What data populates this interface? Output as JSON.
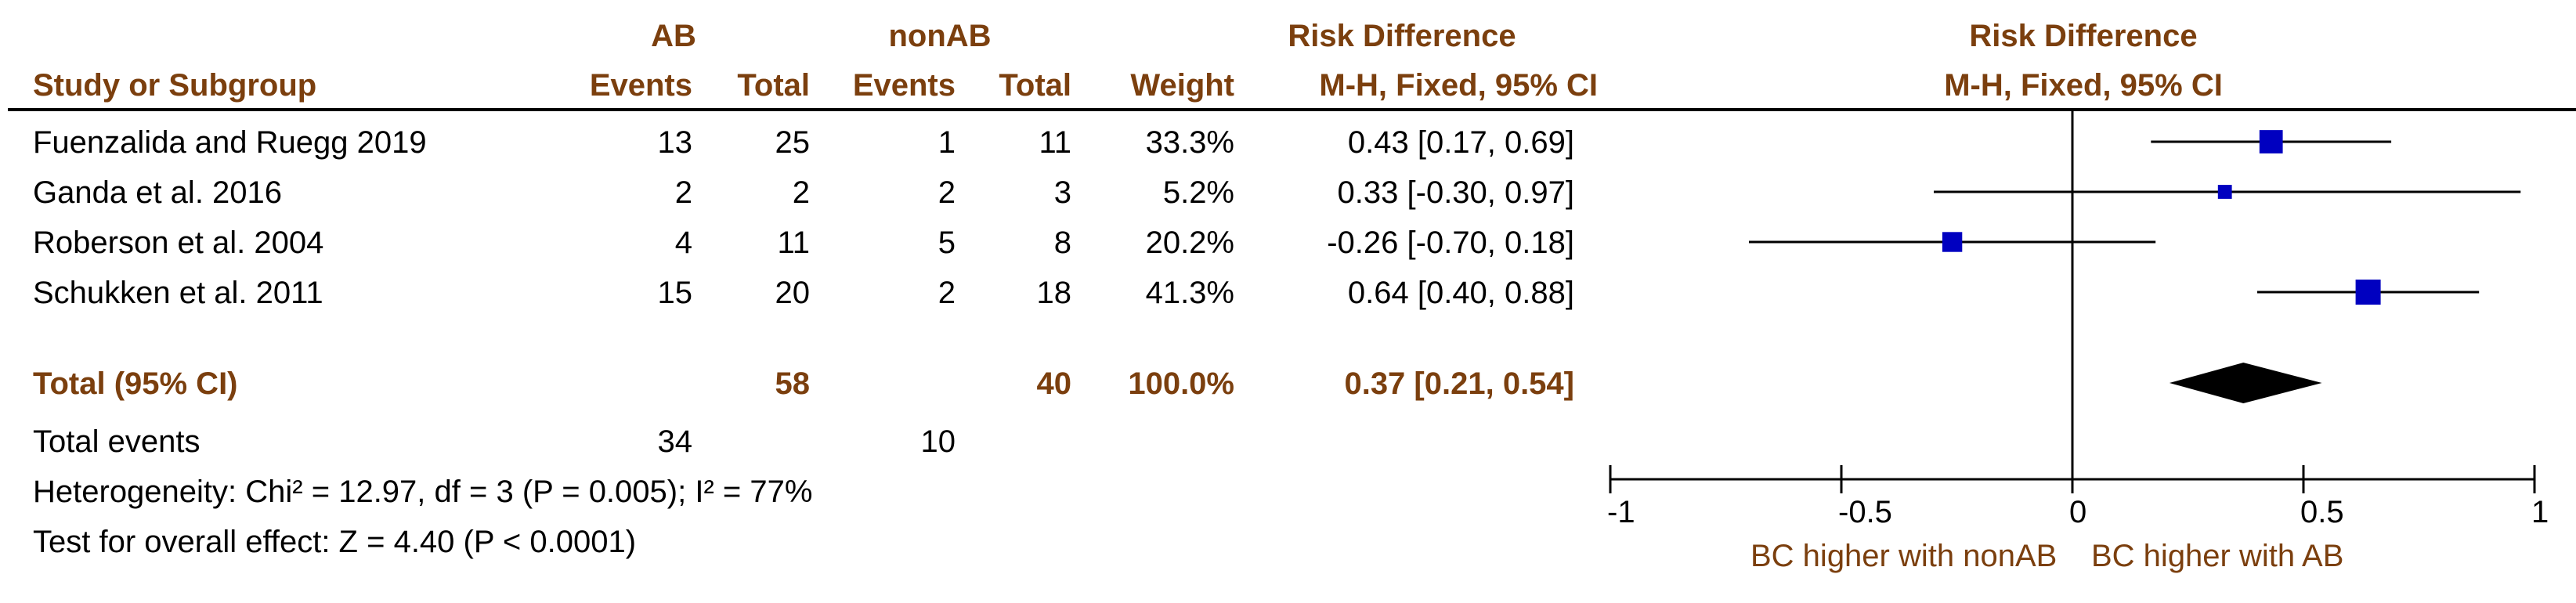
{
  "header": {
    "group1": "AB",
    "group2": "nonAB",
    "effect_title": "Risk Difference",
    "study_col": "Study or Subgroup",
    "events_col": "Events",
    "total_col": "Total",
    "weight_col": "Weight",
    "method": "M-H, Fixed, 95% CI",
    "plot_title": "Risk Difference",
    "plot_method": "M-H, Fixed, 95% CI"
  },
  "studies": [
    {
      "name": "Fuenzalida and Ruegg 2019",
      "ab_events": "13",
      "ab_total": "25",
      "nonab_events": "1",
      "nonab_total": "11",
      "weight": "33.3%",
      "ci_text": "0.43 [0.17, 0.69]"
    },
    {
      "name": "Ganda et al. 2016",
      "ab_events": "2",
      "ab_total": "2",
      "nonab_events": "2",
      "nonab_total": "3",
      "weight": "5.2%",
      "ci_text": "0.33 [-0.30, 0.97]"
    },
    {
      "name": "Roberson et al. 2004",
      "ab_events": "4",
      "ab_total": "11",
      "nonab_events": "5",
      "nonab_total": "8",
      "weight": "20.2%",
      "ci_text": "-0.26 [-0.70, 0.18]"
    },
    {
      "name": "Schukken et al. 2011",
      "ab_events": "15",
      "ab_total": "20",
      "nonab_events": "2",
      "nonab_total": "18",
      "weight": "41.3%",
      "ci_text": "0.64 [0.40, 0.88]"
    }
  ],
  "total": {
    "label": "Total (95% CI)",
    "ab_total": "58",
    "nonab_total": "40",
    "weight": "100.0%",
    "ci_text": "0.37 [0.21, 0.54]"
  },
  "events": {
    "label": "Total events",
    "ab": "34",
    "nonab": "10"
  },
  "heterogeneity": "Heterogeneity: Chi² = 12.97, df = 3 (P = 0.005); I² = 77%",
  "overall_effect": "Test for overall effect: Z = 4.40 (P < 0.0001)",
  "axis": {
    "ticks": [
      -1,
      -0.5,
      0,
      0.5,
      1
    ],
    "tick_labels": [
      "-1",
      "-0.5",
      "0",
      "0.5",
      "1"
    ],
    "left_label": "BC higher with nonAB",
    "right_label": "BC higher with AB"
  },
  "chart_data": {
    "type": "forest",
    "xlim": [
      -1,
      1
    ],
    "reference_line": 0,
    "colors": {
      "study_marker": "#0000c0",
      "pooled": "#000000",
      "header": "#7b3f0e"
    },
    "series": [
      {
        "study": "Fuenzalida and Ruegg 2019",
        "rd": 0.43,
        "lower": 0.17,
        "upper": 0.69,
        "weight": 33.3
      },
      {
        "study": "Ganda et al. 2016",
        "rd": 0.33,
        "lower": -0.3,
        "upper": 0.97,
        "weight": 5.2
      },
      {
        "study": "Roberson et al. 2004",
        "rd": -0.26,
        "lower": -0.7,
        "upper": 0.18,
        "weight": 20.2
      },
      {
        "study": "Schukken et al. 2011",
        "rd": 0.64,
        "lower": 0.4,
        "upper": 0.88,
        "weight": 41.3
      }
    ],
    "pooled": {
      "rd": 0.37,
      "lower": 0.21,
      "upper": 0.54
    }
  }
}
